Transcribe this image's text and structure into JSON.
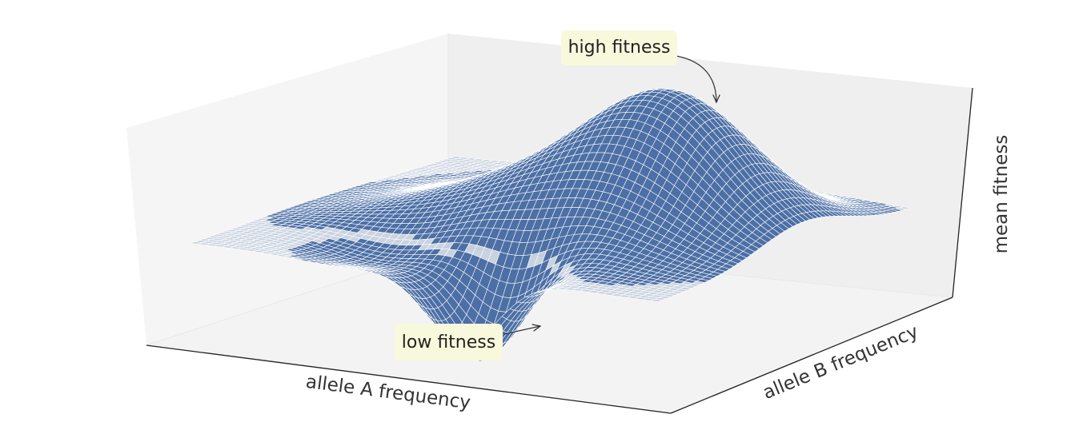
{
  "chart_data": {
    "type": "surface3d",
    "title": "",
    "xlabel": "allele A frequency",
    "ylabel": "allele B frequency",
    "zlabel": "mean fitness",
    "ticks_shown": false,
    "grid": false,
    "surface_color": "#4c6fa5",
    "wire_color": "#ffffff",
    "pane_colors": {
      "back": "#efefef",
      "side": "#f4f4f4",
      "floor": "#f3f3f3"
    },
    "annotations": [
      {
        "text": "high fitness",
        "target": "peak",
        "box_color": "#f8f8dc"
      },
      {
        "text": "low fitness",
        "target": "trough",
        "box_color": "#f8f8dc"
      }
    ]
  }
}
